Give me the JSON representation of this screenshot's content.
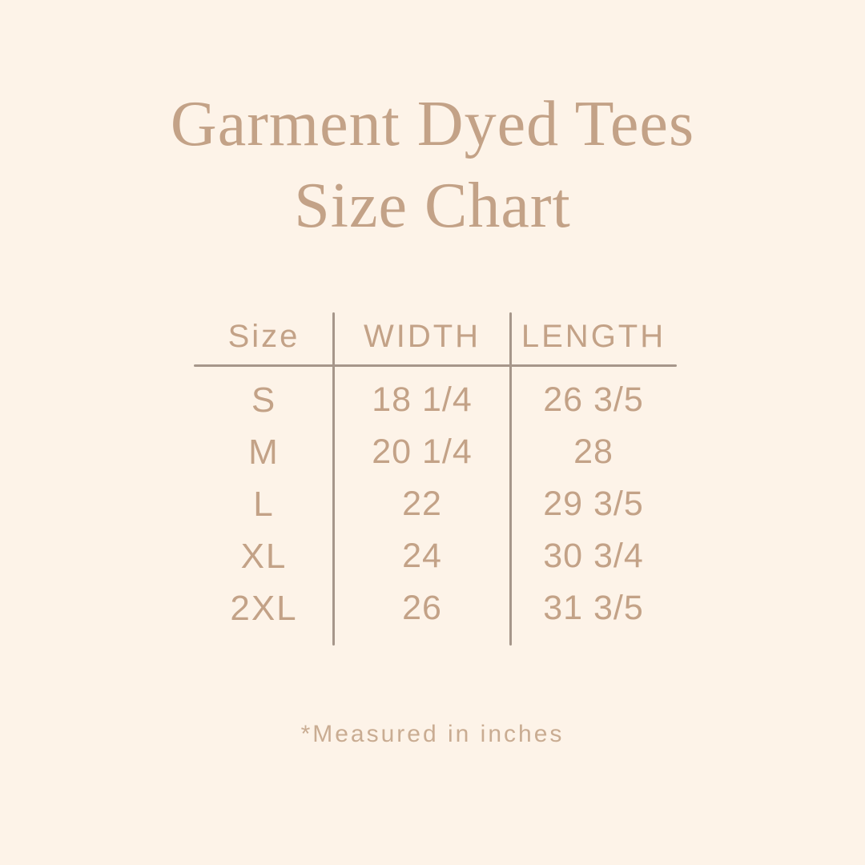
{
  "colors": {
    "background": "#fdf3e8",
    "text": "#c3a287",
    "lines": "#a6968a",
    "footnote": "#c9ac92"
  },
  "title": {
    "line1": "Garment Dyed Tees",
    "line2": "Size Chart"
  },
  "table": {
    "headers": [
      "Size",
      "WIDTH",
      "LENGTH"
    ],
    "rows": [
      {
        "size": "S",
        "width": "18 1/4",
        "length": "26 3/5"
      },
      {
        "size": "M",
        "width": "20 1/4",
        "length": "28"
      },
      {
        "size": "L",
        "width": "22",
        "length": "29 3/5"
      },
      {
        "size": "XL",
        "width": "24",
        "length": "30 3/4"
      },
      {
        "size": "2XL",
        "width": "26",
        "length": "31 3/5"
      }
    ]
  },
  "footnote": "*Measured in inches",
  "chart_data": {
    "type": "table",
    "title": "Garment Dyed Tees Size Chart",
    "columns": [
      "Size",
      "WIDTH",
      "LENGTH"
    ],
    "units": "inches",
    "rows": [
      [
        "S",
        "18 1/4",
        "26 3/5"
      ],
      [
        "M",
        "20 1/4",
        "28"
      ],
      [
        "L",
        "22",
        "29 3/5"
      ],
      [
        "XL",
        "24",
        "30 3/4"
      ],
      [
        "2XL",
        "26",
        "31 3/5"
      ]
    ],
    "numeric": {
      "sizes": [
        "S",
        "M",
        "L",
        "XL",
        "2XL"
      ],
      "width_in": [
        18.25,
        20.25,
        22,
        24,
        26
      ],
      "length_in": [
        26.6,
        28,
        29.6,
        30.75,
        31.6
      ]
    }
  }
}
